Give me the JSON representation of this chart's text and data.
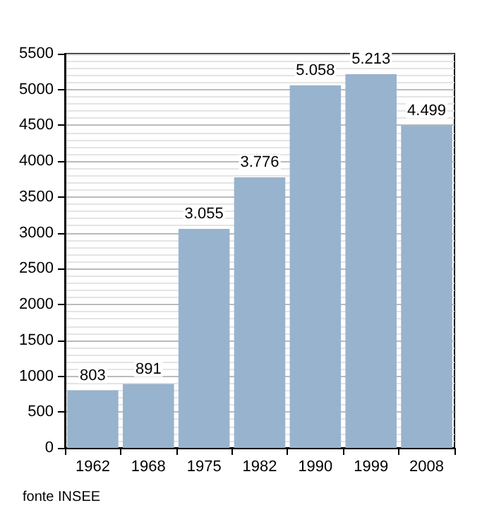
{
  "chart_data": {
    "type": "bar",
    "categories": [
      "1962",
      "1968",
      "1975",
      "1982",
      "1990",
      "1999",
      "2008"
    ],
    "values": [
      803,
      891,
      3055,
      3776,
      5058,
      5213,
      4499
    ],
    "value_labels": [
      "803",
      "891",
      "3.055",
      "3.776",
      "5.058",
      "5.213",
      "4.499"
    ],
    "color": "#98b3cd",
    "ylim": [
      0,
      5500
    ],
    "yticks": [
      0,
      500,
      1000,
      1500,
      2000,
      2500,
      3000,
      3500,
      4000,
      4500,
      5000,
      5500
    ],
    "grid": "y",
    "annotations": [
      "fonte INSEE"
    ]
  }
}
